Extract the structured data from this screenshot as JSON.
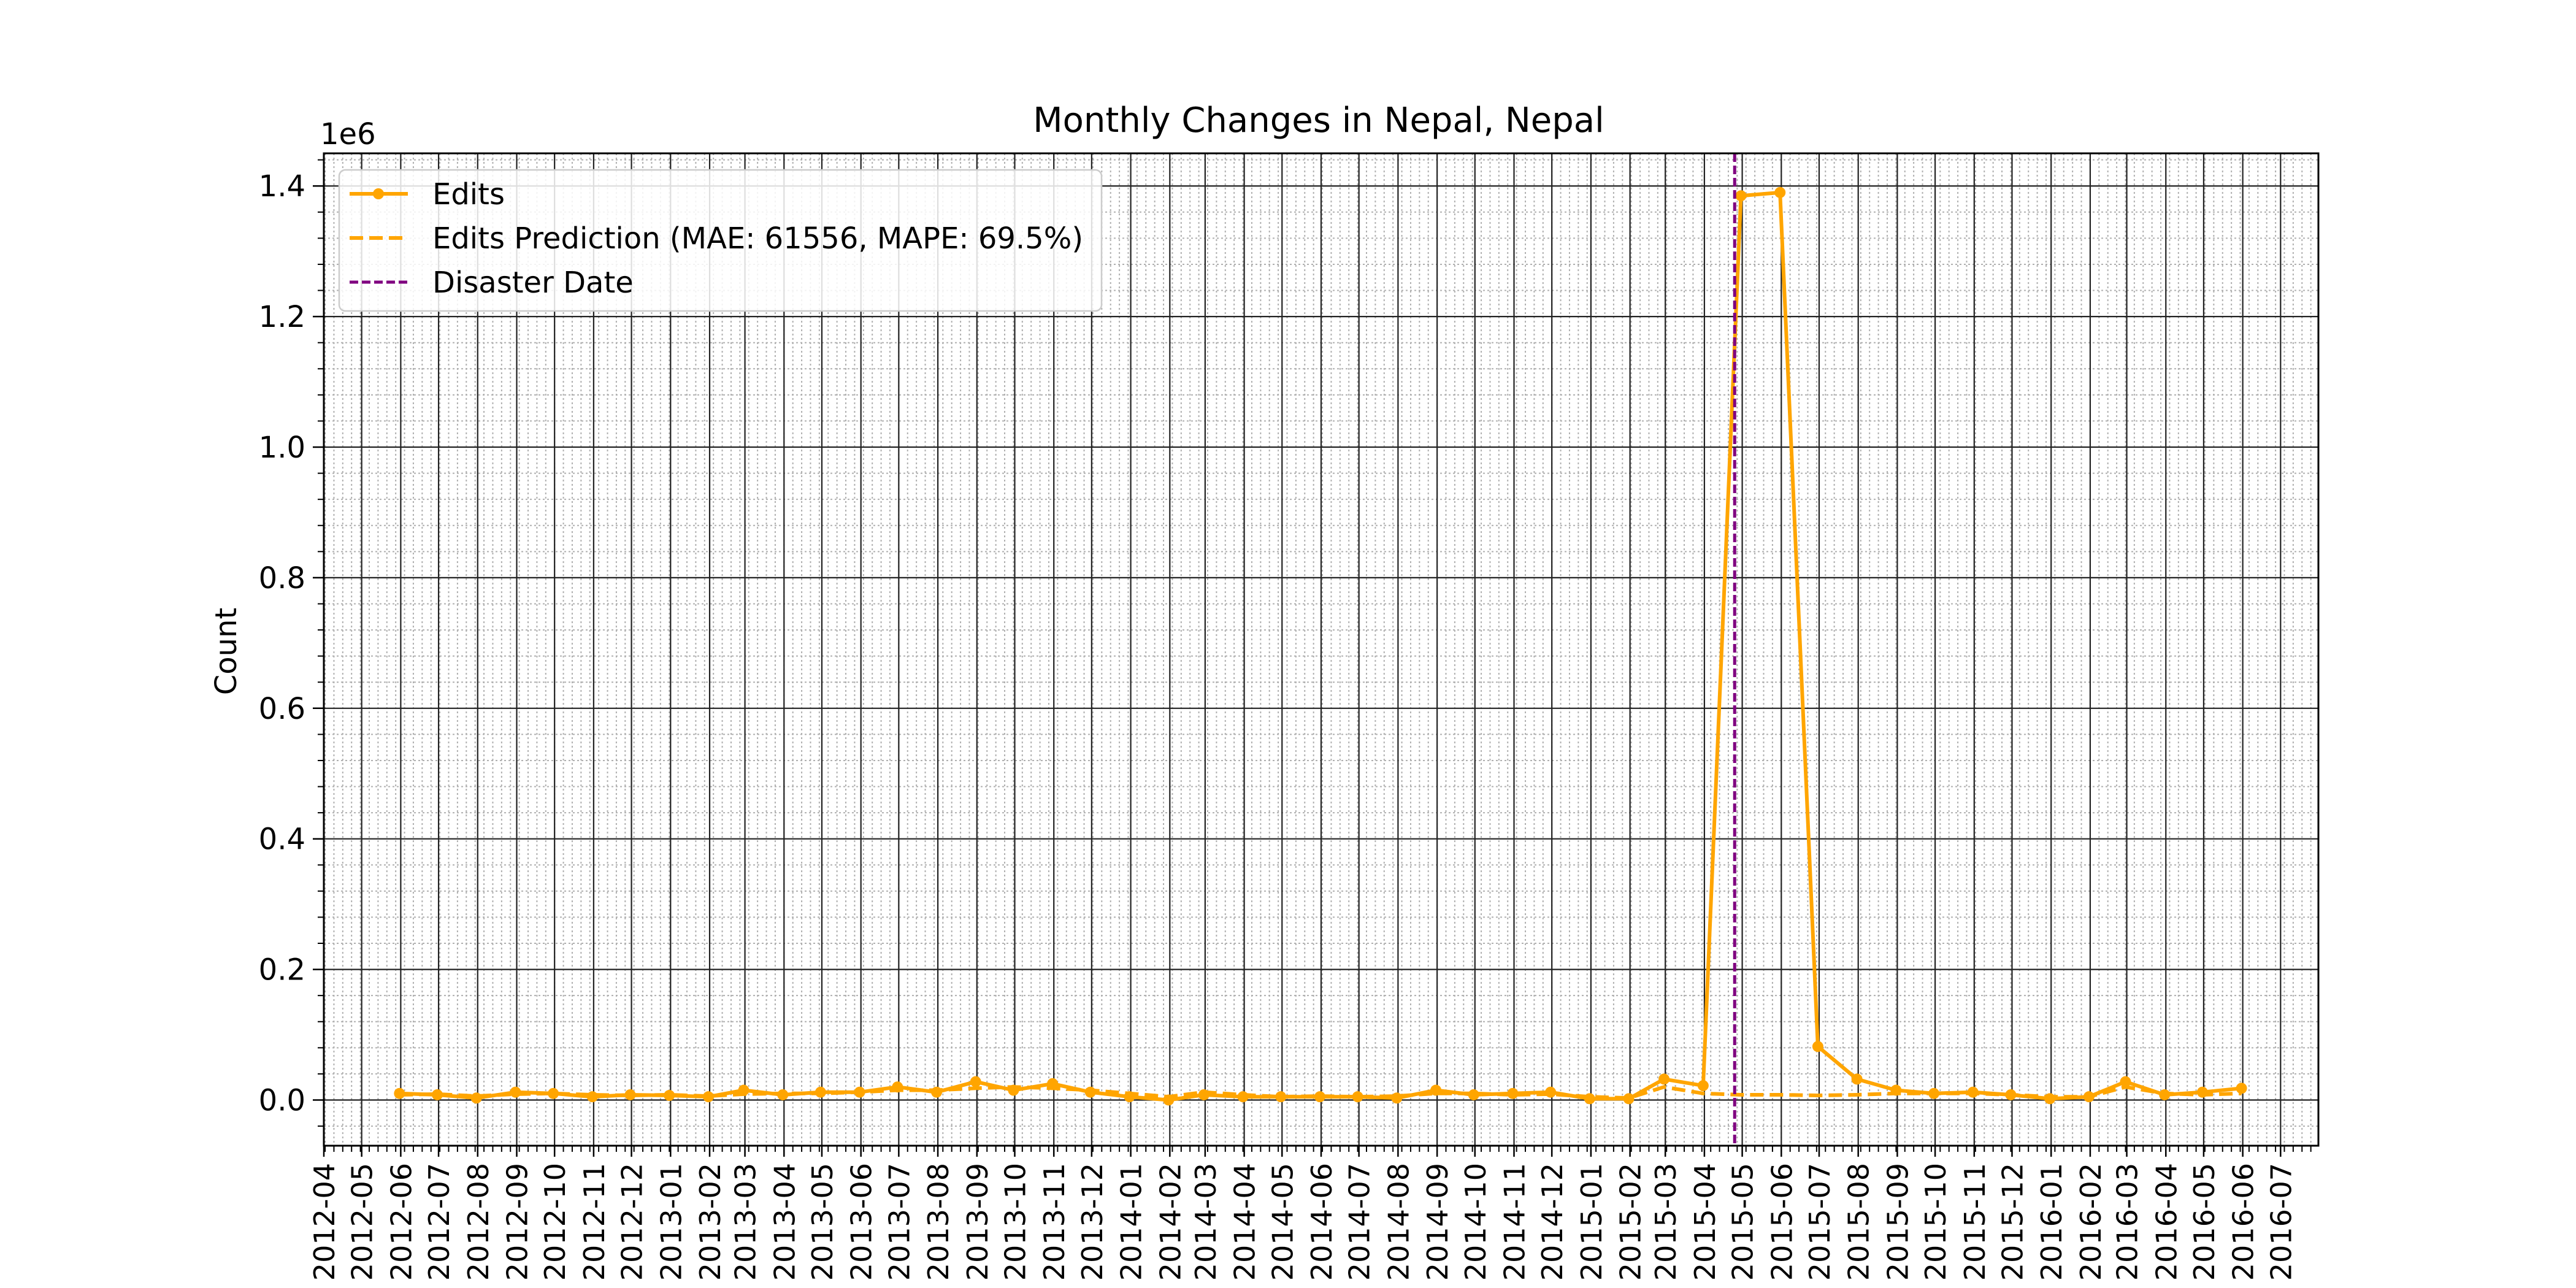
{
  "chart_data": {
    "type": "line",
    "title": "Monthly Changes in Nepal, Nepal",
    "xlabel": "",
    "ylabel": "Count",
    "y_multiplier_label": "1e6",
    "x_range": [
      "2012-04-01",
      "2016-07-31"
    ],
    "ylim": [
      -70000,
      1450000
    ],
    "x_tick_labels": [
      "2012-04",
      "2012-05",
      "2012-06",
      "2012-07",
      "2012-08",
      "2012-09",
      "2012-10",
      "2012-11",
      "2012-12",
      "2013-01",
      "2013-02",
      "2013-03",
      "2013-04",
      "2013-05",
      "2013-06",
      "2013-07",
      "2013-08",
      "2013-09",
      "2013-10",
      "2013-11",
      "2013-12",
      "2014-01",
      "2014-02",
      "2014-03",
      "2014-04",
      "2014-05",
      "2014-06",
      "2014-07",
      "2014-08",
      "2014-09",
      "2014-10",
      "2014-11",
      "2014-12",
      "2015-01",
      "2015-02",
      "2015-03",
      "2015-04",
      "2015-05",
      "2015-06",
      "2015-07",
      "2015-08",
      "2015-09",
      "2015-10",
      "2015-11",
      "2015-12",
      "2016-01",
      "2016-02",
      "2016-03",
      "2016-04",
      "2016-05",
      "2016-06",
      "2016-07"
    ],
    "y_ticks": [
      {
        "value": 0,
        "label": "0.0"
      },
      {
        "value": 200000,
        "label": "0.2"
      },
      {
        "value": 400000,
        "label": "0.4"
      },
      {
        "value": 600000,
        "label": "0.6"
      },
      {
        "value": 800000,
        "label": "0.8"
      },
      {
        "value": 1000000,
        "label": "1.0"
      },
      {
        "value": 1200000,
        "label": "1.2"
      },
      {
        "value": 1400000,
        "label": "1.4"
      }
    ],
    "grid": "major and minor",
    "legend_position": "upper-left",
    "series": [
      {
        "name": "Edits",
        "style": "solid-with-markers",
        "color": "#FFA500",
        "x": [
          "2012-05-31",
          "2012-06-30",
          "2012-07-31",
          "2012-08-31",
          "2012-09-30",
          "2012-10-31",
          "2012-11-30",
          "2012-12-31",
          "2013-01-31",
          "2013-02-28",
          "2013-03-31",
          "2013-04-30",
          "2013-05-31",
          "2013-06-30",
          "2013-07-31",
          "2013-08-31",
          "2013-09-30",
          "2013-10-31",
          "2013-11-30",
          "2013-12-31",
          "2014-01-31",
          "2014-02-28",
          "2014-03-31",
          "2014-04-30",
          "2014-05-31",
          "2014-06-30",
          "2014-07-31",
          "2014-08-31",
          "2014-09-30",
          "2014-10-31",
          "2014-11-30",
          "2014-12-31",
          "2015-01-31",
          "2015-02-28",
          "2015-03-31",
          "2015-04-30",
          "2015-05-31",
          "2015-06-30",
          "2015-07-31",
          "2015-08-31",
          "2015-09-30",
          "2015-10-31",
          "2015-11-30",
          "2015-12-31",
          "2016-01-31",
          "2016-02-29",
          "2016-03-31",
          "2016-04-30",
          "2016-05-31"
        ],
        "values": [
          10000,
          8000,
          3000,
          12000,
          10000,
          5000,
          8000,
          7000,
          5000,
          15000,
          8000,
          12000,
          12000,
          20000,
          12000,
          28000,
          15000,
          25000,
          12000,
          5000,
          0,
          8000,
          5000,
          5000,
          5000,
          5000,
          3000,
          15000,
          8000,
          10000,
          12000,
          2000,
          2000,
          32000,
          22000,
          1385000,
          1390000,
          82000,
          32000,
          15000,
          10000,
          12000,
          8000,
          2000,
          5000,
          28000,
          8000,
          12000,
          18000
        ]
      },
      {
        "name": "Edits Prediction (MAE: 61556, MAPE: 69.5%)",
        "style": "dashed",
        "color": "#FFA500",
        "x": [
          "2012-05-31",
          "2012-06-30",
          "2012-07-31",
          "2012-08-31",
          "2012-09-30",
          "2012-10-31",
          "2012-11-30",
          "2012-12-31",
          "2013-01-31",
          "2013-02-28",
          "2013-03-31",
          "2013-04-30",
          "2013-05-31",
          "2013-06-30",
          "2013-07-31",
          "2013-08-31",
          "2013-09-30",
          "2013-10-31",
          "2013-11-30",
          "2013-12-31",
          "2014-01-31",
          "2014-02-28",
          "2014-03-31",
          "2014-04-30",
          "2014-05-31",
          "2014-06-30",
          "2014-07-31",
          "2014-08-31",
          "2014-09-30",
          "2014-10-31",
          "2014-11-30",
          "2014-12-31",
          "2015-01-31",
          "2015-02-28",
          "2015-03-31",
          "2015-04-30",
          "2015-05-31",
          "2015-06-30",
          "2015-07-31",
          "2015-08-31",
          "2015-09-30",
          "2015-10-31",
          "2015-11-30",
          "2015-12-31",
          "2016-01-31",
          "2016-02-29",
          "2016-03-31",
          "2016-04-30",
          "2016-05-31"
        ],
        "values": [
          8000,
          9000,
          6000,
          9000,
          10000,
          8000,
          7000,
          8000,
          6000,
          9000,
          10000,
          10000,
          12000,
          15000,
          15000,
          18000,
          20000,
          18000,
          15000,
          10000,
          5000,
          12000,
          8000,
          5000,
          6000,
          5000,
          6000,
          10000,
          10000,
          8000,
          9000,
          5000,
          3000,
          20000,
          10000,
          8000,
          8000,
          7000,
          8000,
          10000,
          10000,
          10000,
          8000,
          5000,
          5000,
          20000,
          10000,
          8000,
          10000
        ]
      }
    ],
    "disaster_date": {
      "name": "Disaster Date",
      "x": "2015-04-25",
      "color": "#800080",
      "style": "dashed"
    }
  }
}
